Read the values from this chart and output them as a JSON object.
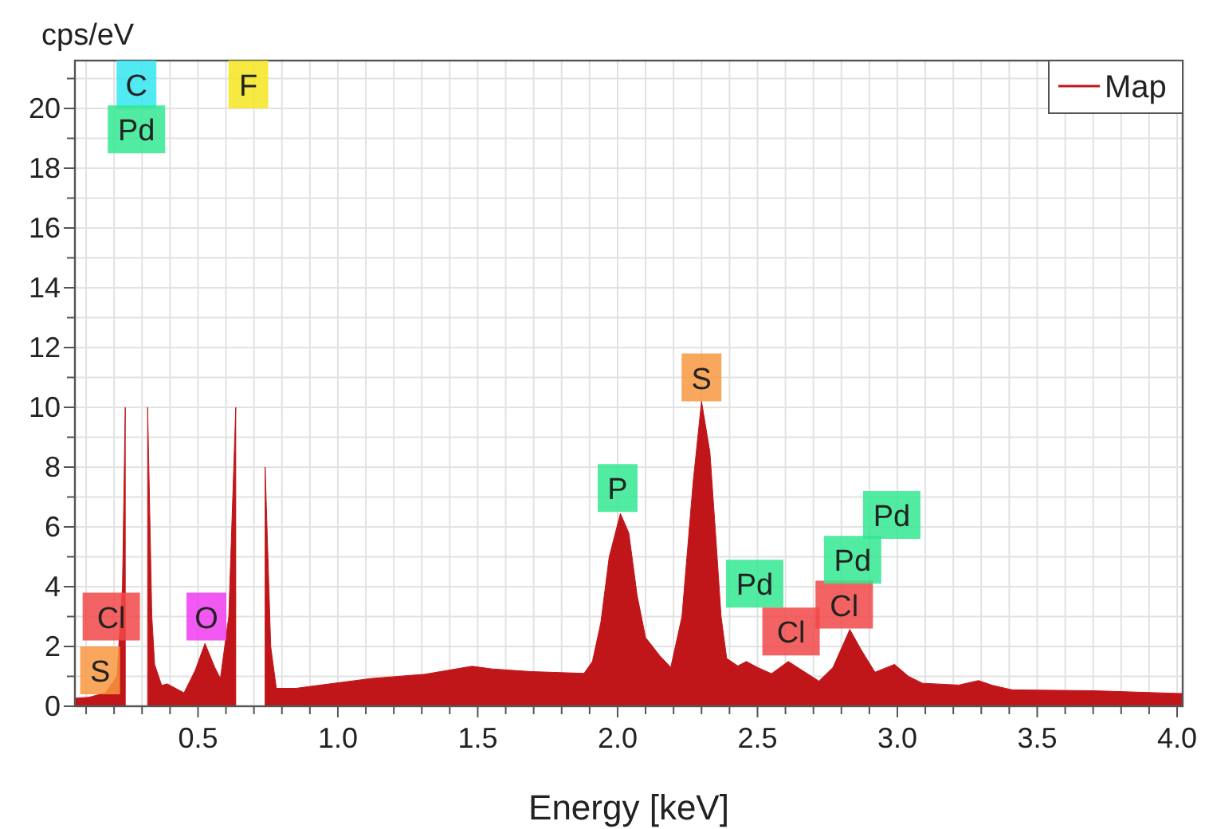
{
  "chart_data": {
    "type": "area",
    "xlabel": "Energy [keV]",
    "ylabel": "cps/eV",
    "xlim": [
      0.06,
      4.02
    ],
    "ylim": [
      0,
      21.6
    ],
    "xticks": [
      {
        "value": 0.1,
        "label": null
      },
      {
        "value": 0.2,
        "label": null
      },
      {
        "value": 0.3,
        "label": null
      },
      {
        "value": 0.4,
        "label": null
      },
      {
        "value": 0.5,
        "label": "0.5"
      },
      {
        "value": 0.6,
        "label": null
      },
      {
        "value": 0.7,
        "label": null
      },
      {
        "value": 0.8,
        "label": null
      },
      {
        "value": 0.9,
        "label": null
      },
      {
        "value": 1.0,
        "label": "1.0"
      },
      {
        "value": 1.1,
        "label": null
      },
      {
        "value": 1.2,
        "label": null
      },
      {
        "value": 1.3,
        "label": null
      },
      {
        "value": 1.4,
        "label": null
      },
      {
        "value": 1.5,
        "label": "1.5"
      },
      {
        "value": 1.6,
        "label": null
      },
      {
        "value": 1.7,
        "label": null
      },
      {
        "value": 1.8,
        "label": null
      },
      {
        "value": 1.9,
        "label": null
      },
      {
        "value": 2.0,
        "label": "2.0"
      },
      {
        "value": 2.1,
        "label": null
      },
      {
        "value": 2.2,
        "label": null
      },
      {
        "value": 2.3,
        "label": null
      },
      {
        "value": 2.4,
        "label": null
      },
      {
        "value": 2.5,
        "label": "2.5"
      },
      {
        "value": 2.6,
        "label": null
      },
      {
        "value": 2.7,
        "label": null
      },
      {
        "value": 2.8,
        "label": null
      },
      {
        "value": 2.9,
        "label": null
      },
      {
        "value": 3.0,
        "label": "3.0"
      },
      {
        "value": 3.1,
        "label": null
      },
      {
        "value": 3.2,
        "label": null
      },
      {
        "value": 3.3,
        "label": null
      },
      {
        "value": 3.4,
        "label": null
      },
      {
        "value": 3.5,
        "label": "3.5"
      },
      {
        "value": 3.6,
        "label": null
      },
      {
        "value": 3.7,
        "label": null
      },
      {
        "value": 3.8,
        "label": null
      },
      {
        "value": 3.9,
        "label": null
      },
      {
        "value": 4.0,
        "label": "4.0"
      }
    ],
    "yticks": [
      0,
      {
        "value": 1,
        "label": null
      },
      2,
      {
        "value": 3,
        "label": null
      },
      4,
      {
        "value": 5,
        "label": null
      },
      6,
      {
        "value": 7,
        "label": null
      },
      8,
      {
        "value": 9,
        "label": null
      },
      10,
      {
        "value": 11,
        "label": null
      },
      12,
      {
        "value": 13,
        "label": null
      },
      14,
      {
        "value": 15,
        "label": null
      },
      16,
      {
        "value": 17,
        "label": null
      },
      18,
      {
        "value": 19,
        "label": null
      },
      20,
      {
        "value": 21,
        "label": null
      }
    ],
    "grid": true,
    "legend": "top right",
    "series": [
      {
        "name": "Map",
        "color": "#c0161a",
        "x": [
          0.06,
          0.11,
          0.17,
          0.21,
          0.23,
          0.24,
          0.255,
          0.31,
          0.32,
          0.335,
          0.345,
          0.37,
          0.39,
          0.45,
          0.49,
          0.525,
          0.56,
          0.58,
          0.61,
          0.635,
          0.663,
          0.72,
          0.74,
          0.76,
          0.78,
          0.85,
          0.93,
          1.12,
          1.31,
          1.48,
          1.55,
          1.69,
          1.88,
          1.91,
          1.94,
          1.97,
          2.01,
          2.04,
          2.07,
          2.1,
          2.15,
          2.19,
          2.23,
          2.27,
          2.3,
          2.33,
          2.35,
          2.37,
          2.39,
          2.43,
          2.46,
          2.5,
          2.55,
          2.61,
          2.66,
          2.72,
          2.77,
          2.83,
          2.87,
          2.92,
          2.99,
          3.04,
          3.09,
          3.22,
          3.29,
          3.34,
          3.41,
          3.7,
          4.0,
          4.02
        ],
        "values": [
          0.27,
          0.3,
          0.45,
          1.0,
          4,
          10,
          null,
          null,
          10,
          3,
          1.4,
          0.7,
          0.75,
          0.45,
          1.2,
          2.1,
          1.3,
          0.93,
          3,
          10,
          null,
          null,
          8,
          2,
          0.6,
          0.6,
          0.7,
          0.93,
          1.07,
          1.34,
          1.25,
          1.16,
          1.1,
          1.5,
          2.8,
          5.0,
          6.45,
          5.8,
          3.7,
          2.3,
          1.7,
          1.3,
          3.0,
          7.5,
          10.2,
          8.5,
          5.8,
          3,
          1.6,
          1.35,
          1.5,
          1.3,
          1.09,
          1.5,
          1.2,
          0.84,
          1.3,
          2.57,
          1.9,
          1.14,
          1.4,
          1.0,
          0.77,
          0.71,
          0.86,
          0.7,
          0.55,
          0.52,
          0.43,
          0.43
        ]
      }
    ],
    "annotations": [
      {
        "text": "C",
        "x": 0.28,
        "y": 20.8
      },
      {
        "text": "Pd",
        "x": 0.28,
        "y": 19.3
      },
      {
        "text": "F",
        "x": 0.68,
        "y": 20.8
      },
      {
        "text": "Cl",
        "x": 0.19,
        "y": 3.0
      },
      {
        "text": "S",
        "x": 0.15,
        "y": 1.2
      },
      {
        "text": "O",
        "x": 0.53,
        "y": 3.0
      },
      {
        "text": "P",
        "x": 2.0,
        "y": 7.3
      },
      {
        "text": "S",
        "x": 2.3,
        "y": 11.0
      },
      {
        "text": "Pd",
        "x": 2.49,
        "y": 4.1
      },
      {
        "text": "Cl",
        "x": 2.62,
        "y": 2.5
      },
      {
        "text": "Cl",
        "x": 2.81,
        "y": 3.4
      },
      {
        "text": "Pd",
        "x": 2.84,
        "y": 4.9
      },
      {
        "text": "Pd",
        "x": 2.98,
        "y": 6.4
      }
    ]
  }
}
